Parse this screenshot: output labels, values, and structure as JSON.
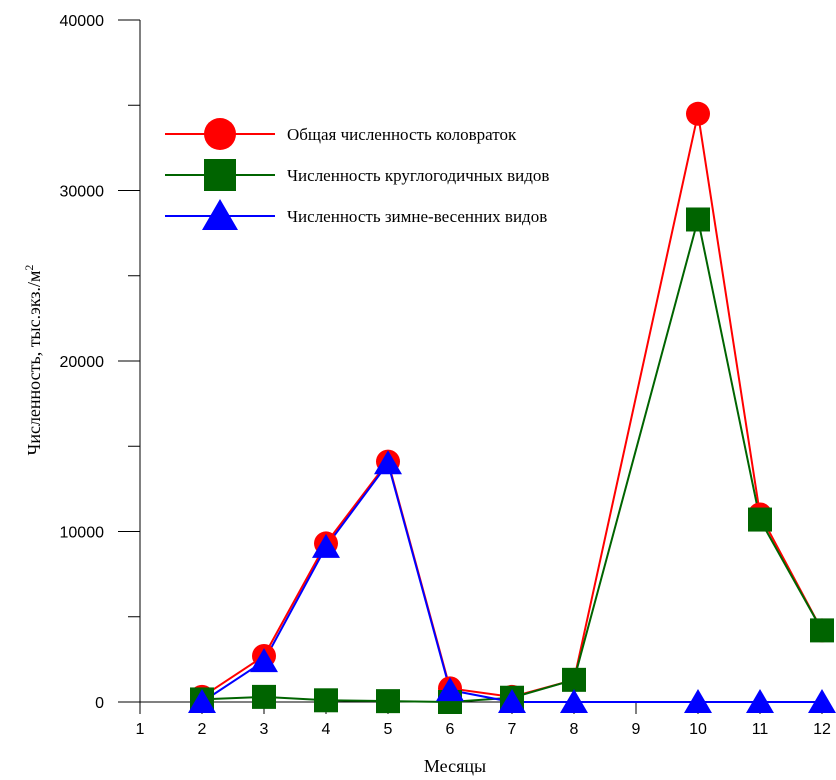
{
  "chart_data": {
    "type": "line",
    "xlabel": "Месяцы",
    "ylabel": "Численность, тыс.экз./м",
    "ylabel_superscript": "2",
    "xlim": [
      1,
      12
    ],
    "ylim": [
      0,
      40000
    ],
    "x_ticks": [
      1,
      2,
      3,
      4,
      5,
      6,
      7,
      8,
      9,
      10,
      11,
      12
    ],
    "y_ticks": [
      0,
      10000,
      20000,
      30000,
      40000
    ],
    "y_minor_ticks": [
      5000,
      15000,
      25000,
      35000
    ],
    "grid": false,
    "legend_position": "top-left",
    "series": [
      {
        "name": "Общая численность коловраток",
        "color": "#ff0000",
        "marker": "circle",
        "x": [
          2,
          3,
          4,
          5,
          6,
          7,
          8,
          10,
          11,
          12
        ],
        "y": [
          300,
          2700,
          9300,
          14100,
          800,
          300,
          1300,
          34500,
          11000,
          4200
        ]
      },
      {
        "name": "Численность круглогодичных видов",
        "color": "#006400",
        "marker": "square",
        "x": [
          2,
          3,
          4,
          5,
          6,
          7,
          8,
          10,
          11,
          12
        ],
        "y": [
          150,
          300,
          100,
          50,
          0,
          250,
          1300,
          28300,
          10700,
          4200
        ]
      },
      {
        "name": "Численность зимне-весенних видов",
        "color": "#0000ff",
        "marker": "triangle",
        "x": [
          2,
          3,
          4,
          5,
          6,
          7,
          8,
          10,
          11,
          12
        ],
        "y": [
          0,
          2400,
          9100,
          14000,
          700,
          0,
          0,
          0,
          0,
          0
        ]
      }
    ]
  }
}
